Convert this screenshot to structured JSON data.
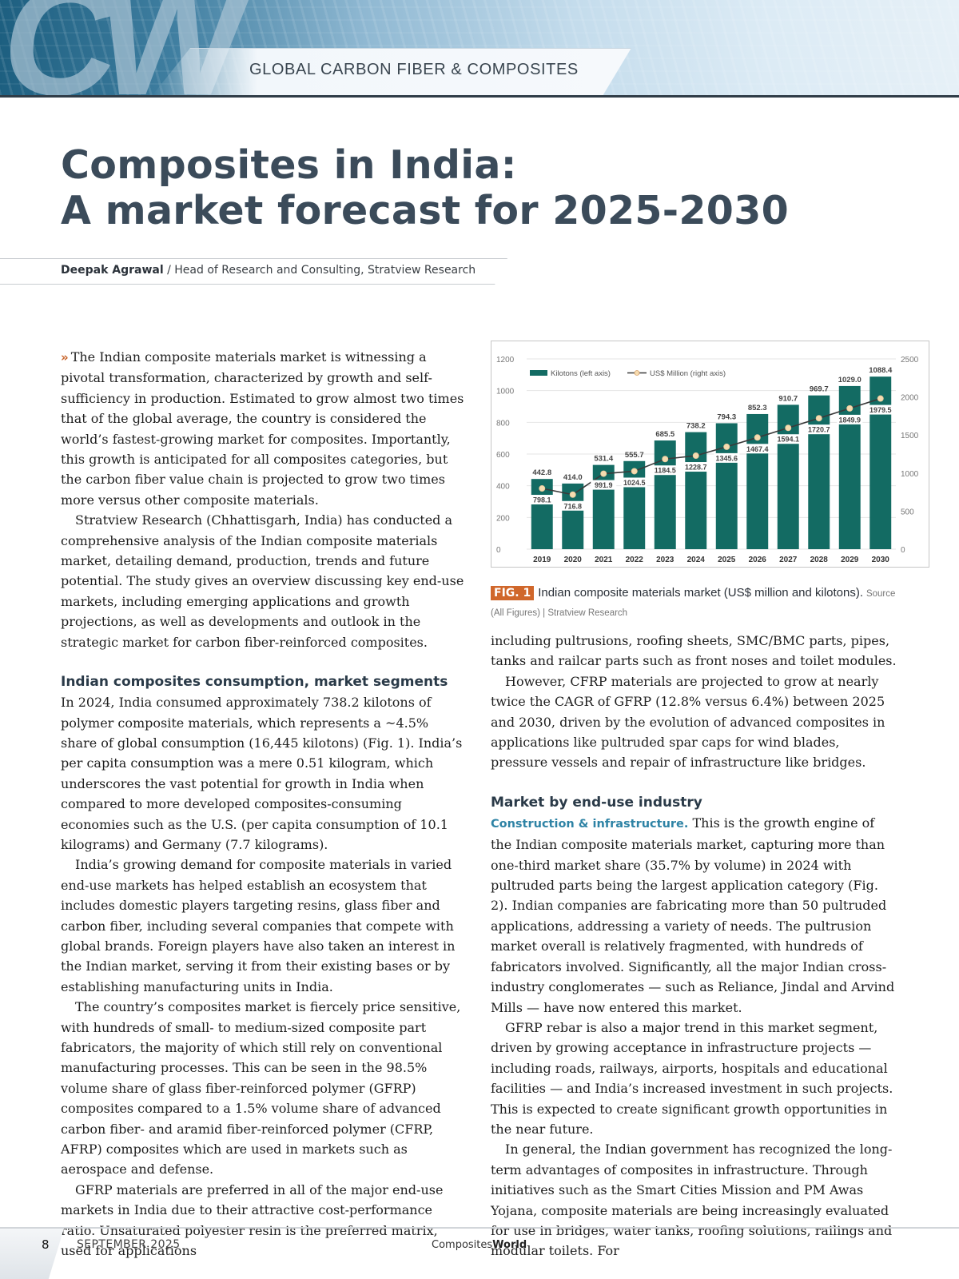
{
  "header": {
    "logo_text": "CW",
    "section_label": "GLOBAL CARBON FIBER & COMPOSITES"
  },
  "article": {
    "title_line1": "Composites in India:",
    "title_line2": "A market forecast for 2025-2030",
    "author": "Deepak Agrawal",
    "author_separator": " / ",
    "author_role": "Head of Research and Consulting, Stratview Research",
    "lead_marker": "»",
    "left_column": {
      "p1": "The Indian composite materials market is witnessing a pivotal transformation, characterized by growth and self-sufficiency in production. Estimated to grow almost two times that of the global average, the country is considered the world’s fastest-growing market for composites. Importantly, this growth is anticipated for all composites categories, but the carbon fiber value chain is projected to grow two times more versus other composite materials.",
      "p2": "Stratview Research (Chhattisgarh, India) has conducted a comprehensive analysis of the Indian composite materials market, detailing demand, production, trends and future potential. The study gives an overview discussing key end-use markets, including emerging applications and growth projections, as well as developments and outlook in the strategic market for carbon fiber-reinforced composites.",
      "subhead": "Indian composites consumption, market segments",
      "p3": "In 2024, India consumed approximately 738.2 kilotons of polymer composite materials, which represents a ~4.5% share of global consumption (16,445 kilotons) (Fig. 1). India’s per capita consumption was a mere 0.51 kilogram, which underscores the vast potential for growth in India when compared to more developed composites-consuming economies such as the U.S. (per capita consumption of 10.1 kilograms) and Germany (7.7 kilograms).",
      "p4": "India’s growing demand for composite materials in varied end-use markets has helped establish an ecosystem that includes domestic players targeting resins, glass fiber and carbon fiber, including several companies that compete with global brands. Foreign players have also taken an interest in the Indian market, serving it from their existing bases or by establishing manufacturing units in India.",
      "p5": "The country’s composites market is fiercely price sensitive, with hundreds of small- to medium-sized composite part fabricators, the majority of which still rely on conventional manufacturing processes. This can be seen in the 98.5% volume share of glass fiber-reinforced polymer (GFRP) composites compared to a 1.5% volume share of advanced carbon fiber- and aramid fiber-reinforced polymer (CFRP, AFRP) composites which are used in markets such as aerospace and defense.",
      "p6": "GFRP materials are preferred in all of the major end-use markets in India due to their attractive cost-performance ratio. Unsaturated polyester resin is the preferred matrix, used for applications"
    },
    "right_column": {
      "p1": "including pultrusions, roofing sheets, SMC/BMC parts, pipes, tanks and railcar parts such as front noses and toilet modules.",
      "p2": "However, CFRP materials are projected to grow at nearly twice the CAGR of GFRP (12.8% versus 6.4%) between 2025 and 2030, driven by the evolution of advanced composites in applications like pultruded spar caps for wind blades, pressure vessels and repair of infrastructure like bridges.",
      "subhead": "Market by end-use industry",
      "runin": "Construction & infrastructure.",
      "p3": " This is the growth engine of the Indian composite materials market, capturing more than one-third market share (35.7% by volume) in 2024 with pultruded parts being the largest application category (Fig. 2). Indian companies are fabricating more than 50 pultruded applications, addressing a variety of needs. The pultrusion market overall is relatively fragmented, with hundreds of fabricators involved. Significantly, all the major Indian cross-industry conglomerates — such as Reliance, Jindal and Arvind Mills — have now entered this market.",
      "p4": "GFRP rebar is also a major trend in this market segment, driven by growing acceptance in infrastructure projects — including roads, railways, airports, hospitals and educational facilities — and India’s increased investment in such projects. This is expected to create significant growth opportunities in the near future.",
      "p5": "In general, the Indian government has recognized the long-term advantages of composites in infrastructure. Through initiatives such as the Smart Cities Mission and PM Awas Yojana, composite materials are being increasingly evaluated for use in bridges, water tanks, roofing solutions, railings and modular toilets. For"
    }
  },
  "figure": {
    "tag": "FIG. 1",
    "title": "Indian composite materials market (US$ million and kilotons).",
    "source": "Source (All Figures) | Stratview Research"
  },
  "chart_data": {
    "type": "bar",
    "title": "Indian composite materials market (US$ million and kilotons)",
    "categories": [
      "2019",
      "2020",
      "2021",
      "2022",
      "2023",
      "2024",
      "2025",
      "2026",
      "2027",
      "2028",
      "2029",
      "2030"
    ],
    "series": [
      {
        "name": "Kilotons (left axis)",
        "type": "bar",
        "axis": "left",
        "color": "#136b63",
        "values": [
          442.8,
          414.0,
          531.4,
          555.7,
          685.5,
          738.2,
          794.3,
          852.3,
          910.7,
          969.7,
          1029.0,
          1088.4
        ]
      },
      {
        "name": "US$ Million (right axis)",
        "type": "line",
        "axis": "right",
        "color": "#3a3a3a",
        "marker_color": "#f6dcb0",
        "values": [
          798.1,
          716.8,
          991.9,
          1024.5,
          1184.5,
          1228.7,
          1345.6,
          1467.4,
          1594.1,
          1720.7,
          1849.9,
          1979.5
        ]
      }
    ],
    "left_axis": {
      "ylim": [
        0,
        1200
      ],
      "ticks": [
        0,
        200,
        400,
        600,
        800,
        1000,
        1200
      ]
    },
    "right_axis": {
      "ylim": [
        0,
        2500
      ],
      "ticks": [
        0,
        500,
        1000,
        1500,
        2000,
        2500
      ]
    },
    "grid": true,
    "legend_position": "top-left",
    "xlabel": "",
    "ylabel": ""
  },
  "footer": {
    "page_number": "8",
    "date": "SEPTEMBER 2025",
    "brand_prefix": "Composites",
    "brand_suffix": "World"
  }
}
